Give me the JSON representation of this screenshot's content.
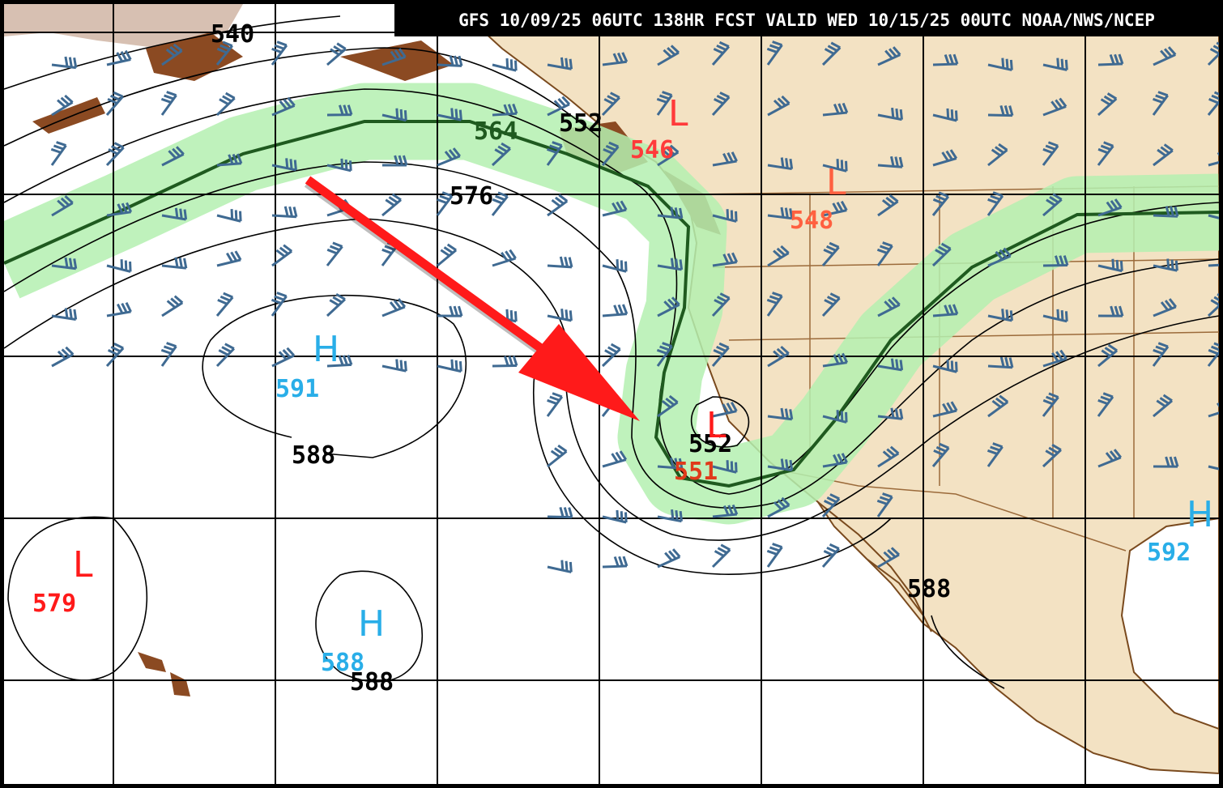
{
  "header": {
    "title": "GFS 10/09/25 06UTC 138HR FCST VALID WED 10/15/25 00UTC NOAA/NWS/NCEP"
  },
  "contour_labels": [
    "540",
    "552",
    "564",
    "576",
    "588",
    "552",
    "588",
    "588"
  ],
  "centers": [
    {
      "symbol": "L",
      "value": "546"
    },
    {
      "symbol": "L",
      "value": "548"
    },
    {
      "symbol": "H",
      "value": "591"
    },
    {
      "symbol": "L",
      "value": "551"
    },
    {
      "symbol": "L",
      "value": "579"
    },
    {
      "symbol": "H",
      "value": "588"
    },
    {
      "symbol": "H",
      "value": "592"
    }
  ]
}
